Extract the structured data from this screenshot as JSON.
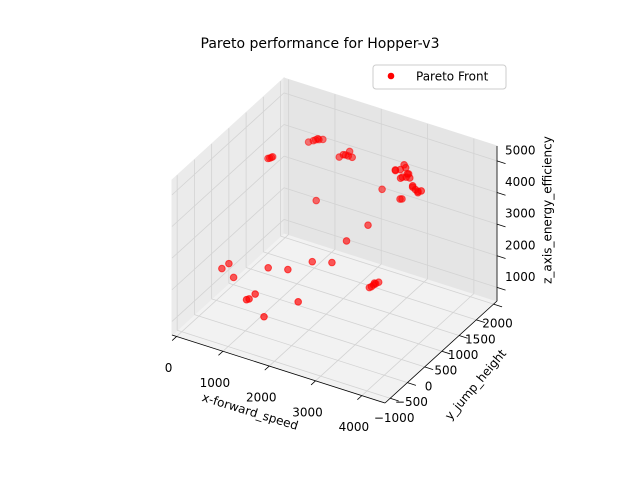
{
  "chart_data": {
    "type": "scatter3d",
    "title": "Pareto performance for Hopper-v3",
    "x_label": "x-forward_speed",
    "y_label": "y_jump_height",
    "z_label": "z_axis_energy_efficiency",
    "series": [
      {
        "name": "Pareto Front",
        "color": "#ff0000",
        "x": [
          2960,
          3050,
          2880,
          3100,
          3000,
          2900,
          3150,
          3050,
          3280,
          3200,
          3350,
          3300,
          3250,
          3400,
          3100,
          3000,
          2900,
          2470,
          2793,
          2850,
          2517,
          2550,
          2480,
          2600,
          2450,
          2530,
          670,
          700,
          640,
          720,
          1220,
          1280,
          1180,
          1350,
          1100,
          1300,
          1910,
          1850,
          1980,
          2050,
          1800,
          1950,
          1180,
          645,
          2264,
          1478,
          2467,
          1556,
          1459,
          1880,
          484,
          2137,
          1809,
          1211,
          691,
          1100,
          1250
        ],
        "y": [
          1365,
          1400,
          1330,
          1380,
          1420,
          1300,
          1350,
          1300,
          1372,
          1400,
          1350,
          1420,
          1330,
          1380,
          1450,
          1480,
          1450,
          1493,
          1580,
          1560,
          1184,
          1200,
          1170,
          1220,
          1150,
          1190,
          650,
          660,
          640,
          670,
          1245,
          1260,
          1230,
          1280,
          1200,
          1200,
          1187,
          1200,
          1170,
          1190,
          1150,
          1250,
          -633,
          -500,
          738,
          914,
          1089,
          -13,
          -575,
          -149,
          -487,
          485,
          355,
          -120,
          -425,
          -600,
          -550
        ],
        "z": [
          4735,
          4800,
          4700,
          4650,
          4850,
          4760,
          4700,
          4600,
          4245,
          4300,
          4200,
          4150,
          4350,
          4250,
          4450,
          4400,
          4350,
          3755,
          3510,
          3560,
          1060,
          1100,
          1000,
          1150,
          980,
          1120,
          4735,
          4760,
          4720,
          4780,
          4980,
          5000,
          4950,
          5020,
          4900,
          5100,
          4882,
          4850,
          4900,
          4870,
          4800,
          4950,
          1795,
          2530,
          2775,
          3510,
          3020,
          2285,
          1305,
          1550,
          2285,
          2285,
          2285,
          2285,
          2040,
          1700,
          1900
        ]
      }
    ],
    "xlim": [
      -100,
      4500
    ],
    "xticks": [
      0,
      1000,
      2000,
      3000,
      4000
    ],
    "ylim": [
      -1150,
      2100
    ],
    "yticks": [
      {
        "value": -1000,
        "label": "−1000"
      },
      {
        "value": -500,
        "label": "−500"
      },
      0,
      500,
      1000,
      1500,
      2000
    ],
    "zlim": [
      570,
      5470
    ],
    "zticks": [
      1000,
      2000,
      3000,
      4000,
      5000
    ],
    "legend": "upper right",
    "grid": true
  }
}
